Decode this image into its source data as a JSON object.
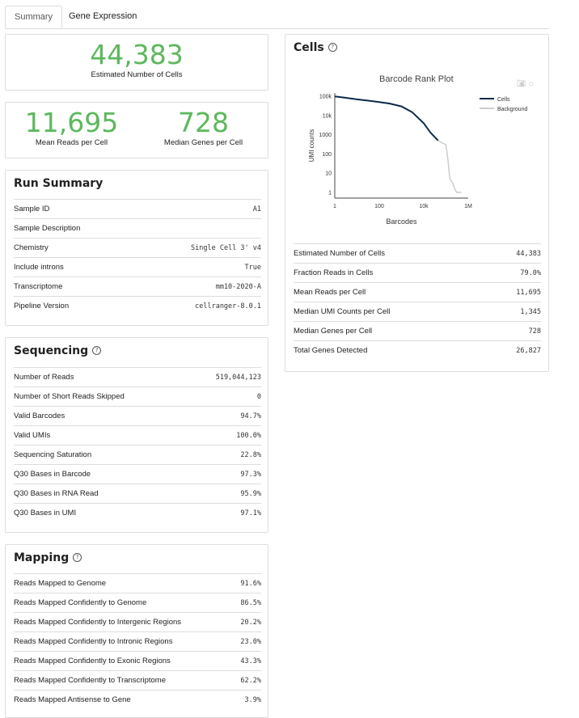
{
  "tabs": [
    {
      "label": "Summary",
      "active": true
    },
    {
      "label": "Gene Expression",
      "active": false
    }
  ],
  "hero": {
    "estimated_cells": {
      "value": "44,383",
      "label": "Estimated Number of Cells"
    },
    "mean_reads": {
      "value": "11,695",
      "label": "Mean Reads per Cell"
    },
    "median_genes": {
      "value": "728",
      "label": "Median Genes per Cell"
    }
  },
  "run_summary": {
    "title": "Run Summary",
    "rows": [
      {
        "k": "Sample ID",
        "v": "A1"
      },
      {
        "k": "Sample Description",
        "v": ""
      },
      {
        "k": "Chemistry",
        "v": "Single Cell 3' v4"
      },
      {
        "k": "Include introns",
        "v": "True"
      },
      {
        "k": "Transcriptome",
        "v": "mm10-2020-A"
      },
      {
        "k": "Pipeline Version",
        "v": "cellranger-8.0.1"
      }
    ]
  },
  "sequencing": {
    "title": "Sequencing",
    "help": "?",
    "rows": [
      {
        "k": "Number of Reads",
        "v": "519,044,123"
      },
      {
        "k": "Number of Short Reads Skipped",
        "v": "0"
      },
      {
        "k": "Valid Barcodes",
        "v": "94.7%"
      },
      {
        "k": "Valid UMIs",
        "v": "100.0%"
      },
      {
        "k": "Sequencing Saturation",
        "v": "22.8%"
      },
      {
        "k": "Q30 Bases in Barcode",
        "v": "97.3%"
      },
      {
        "k": "Q30 Bases in RNA Read",
        "v": "95.9%"
      },
      {
        "k": "Q30 Bases in UMI",
        "v": "97.1%"
      }
    ]
  },
  "mapping": {
    "title": "Mapping",
    "help": "?",
    "rows": [
      {
        "k": "Reads Mapped to Genome",
        "v": "91.6%"
      },
      {
        "k": "Reads Mapped Confidently to Genome",
        "v": "86.5%"
      },
      {
        "k": "Reads Mapped Confidently to Intergenic Regions",
        "v": "20.2%"
      },
      {
        "k": "Reads Mapped Confidently to Intronic Regions",
        "v": "23.0%"
      },
      {
        "k": "Reads Mapped Confidently to Exonic Regions",
        "v": "43.3%"
      },
      {
        "k": "Reads Mapped Confidently to Transcriptome",
        "v": "62.2%"
      },
      {
        "k": "Reads Mapped Antisense to Gene",
        "v": "3.9%"
      }
    ]
  },
  "cells": {
    "title": "Cells",
    "help": "?",
    "rows": [
      {
        "k": "Estimated Number of Cells",
        "v": "44,383"
      },
      {
        "k": "Fraction Reads in Cells",
        "v": "79.0%"
      },
      {
        "k": "Mean Reads per Cell",
        "v": "11,695"
      },
      {
        "k": "Median UMI Counts per Cell",
        "v": "1,345"
      },
      {
        "k": "Median Genes per Cell",
        "v": "728"
      },
      {
        "k": "Total Genes Detected",
        "v": "26,827"
      }
    ]
  },
  "chart_data": {
    "type": "line",
    "title": "Barcode Rank Plot",
    "xlabel": "Barcodes",
    "ylabel": "UMI counts",
    "xscale": "log",
    "yscale": "log",
    "xlim": [
      1,
      1000000
    ],
    "ylim": [
      0.5,
      150000
    ],
    "x_ticks": [
      {
        "v": 1,
        "label": "1"
      },
      {
        "v": 100,
        "label": "100"
      },
      {
        "v": 10000,
        "label": "10k"
      },
      {
        "v": 1000000,
        "label": "1M"
      }
    ],
    "y_ticks": [
      {
        "v": 1,
        "label": "1"
      },
      {
        "v": 10,
        "label": "10"
      },
      {
        "v": 100,
        "label": "100"
      },
      {
        "v": 1000,
        "label": "1000"
      },
      {
        "v": 10000,
        "label": "10k"
      },
      {
        "v": 100000,
        "label": "100k"
      }
    ],
    "legend": "top-right",
    "series": [
      {
        "name": "Cells",
        "color": "#0d2a4a",
        "x": [
          1,
          3,
          10,
          30,
          100,
          300,
          1000,
          3000,
          10000,
          20000,
          30000,
          44383
        ],
        "y": [
          100000,
          85000,
          70000,
          60000,
          50000,
          42000,
          30000,
          15000,
          4000,
          1300,
          800,
          500
        ]
      },
      {
        "name": "Background",
        "color": "#cccccc",
        "x": [
          44383,
          60000,
          100000,
          120000,
          150000,
          200000,
          250000,
          300000,
          500000
        ],
        "y": [
          500,
          400,
          300,
          60,
          5,
          3,
          1.5,
          1,
          1
        ]
      }
    ]
  },
  "modebar": {
    "camera_icon": "camera-icon",
    "home_icon": "home-icon"
  }
}
